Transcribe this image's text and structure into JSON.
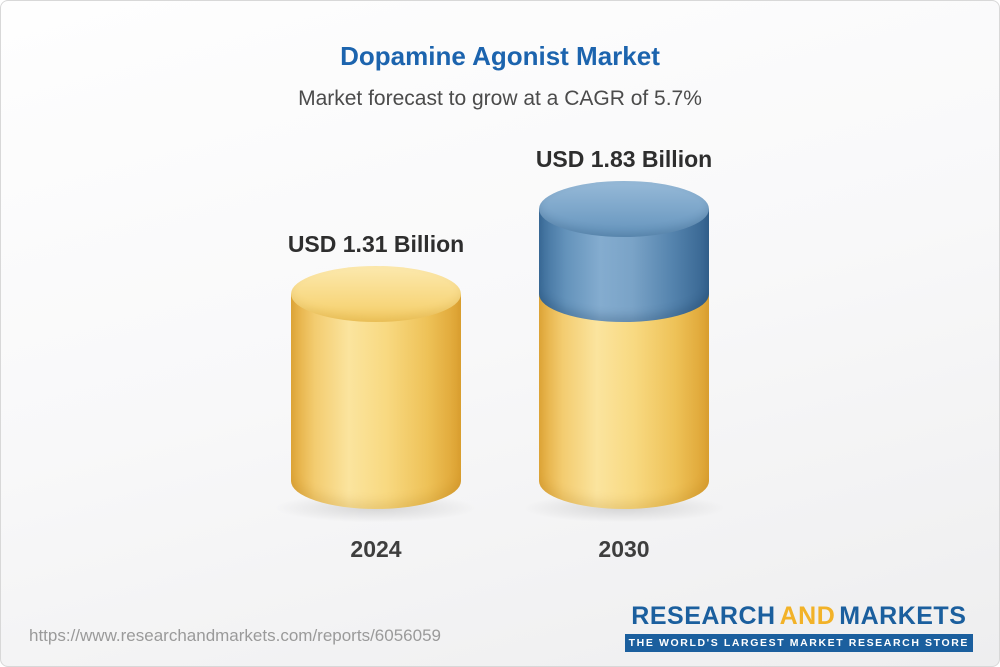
{
  "chart_data": {
    "type": "bar",
    "title": "Dopamine Agonist Market",
    "subtitle": "Market forecast to grow at a CAGR of 5.7%",
    "cagr_percent": 5.7,
    "unit": "USD Billion",
    "categories": [
      "2024",
      "2030"
    ],
    "values": [
      1.31,
      1.83
    ],
    "value_labels": [
      "USD 1.31 Billion",
      "USD 1.83 Billion"
    ],
    "ylim": [
      0,
      2
    ],
    "grid": false,
    "legend": "none",
    "bar_style": "3d-cylinder",
    "colors": {
      "base_segment": "#F6D171",
      "growth_segment": "#5D8FB9",
      "title_text": "#1C64AE"
    }
  },
  "footer": {
    "url": "https://www.researchandmarkets.com/reports/6056059",
    "logo": {
      "word1": "RESEARCH",
      "word2": "AND",
      "word3": "MARKETS",
      "tagline": "THE WORLD'S LARGEST MARKET RESEARCH STORE"
    }
  }
}
